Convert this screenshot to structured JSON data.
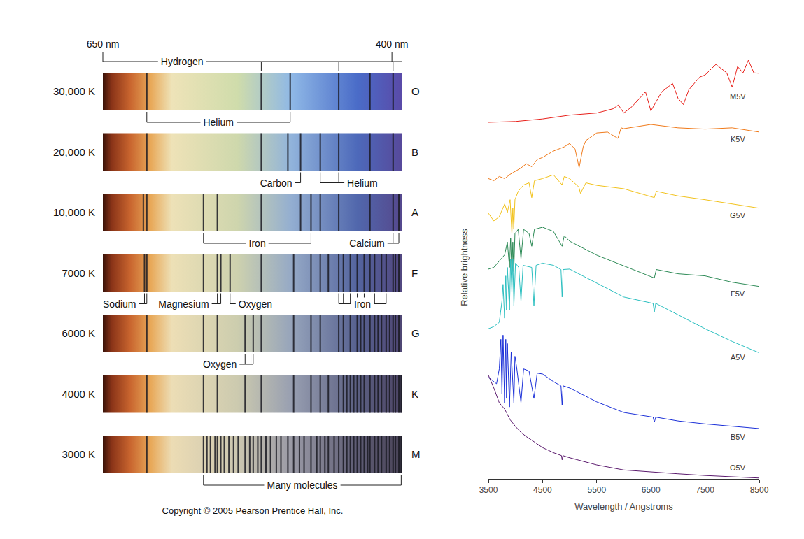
{
  "spectra_diagram": {
    "scale": {
      "xlim": [
        650,
        391
      ],
      "ticks": [
        {
          "value": 650,
          "label": "650 nm"
        },
        {
          "value": 400,
          "label": "400 nm"
        }
      ]
    },
    "header": {
      "text": "Hydrogen",
      "ticks": [
        513,
        446,
        399
      ]
    },
    "rows": [
      {
        "temperature": "30,000 K",
        "class": "O",
        "lines": [
          612,
          513,
          488,
          446,
          419,
          399
        ],
        "labels": [
          {
            "text": "Helium",
            "ticks": [
              612,
              488
            ]
          }
        ]
      },
      {
        "temperature": "20,000 K",
        "class": "B",
        "lines": [
          612,
          513,
          490,
          479,
          462,
          446,
          419,
          399
        ],
        "labels": [
          {
            "text": "Carbon",
            "ticks": [
              479
            ]
          },
          {
            "text": "Helium",
            "ticks": [
              462,
              450,
              446
            ]
          }
        ]
      },
      {
        "temperature": "10,000 K",
        "class": "A",
        "lines": [
          615,
          612,
          563,
          551,
          513,
          479,
          470,
          462,
          446,
          419,
          399,
          394
        ],
        "labels": [
          {
            "text": "Iron",
            "ticks": [
              563,
              470
            ]
          },
          {
            "text": "Calcium",
            "ticks": [
              399,
              394
            ]
          }
        ]
      },
      {
        "temperature": "7000 K",
        "class": "F",
        "lines": [
          614,
          612,
          563,
          551,
          548,
          540,
          513,
          485,
          470,
          462,
          455,
          446,
          442,
          436,
          430,
          424,
          419,
          415,
          409,
          405,
          399,
          397,
          394
        ],
        "labels": [
          {
            "text": "Sodium",
            "ticks": [
              614,
              612
            ]
          },
          {
            "text": "Magnesium",
            "ticks": [
              551,
              548
            ]
          },
          {
            "text": "Oxygen",
            "ticks": [
              540
            ]
          },
          {
            "text": "Iron",
            "ticks": [
              446,
              442,
              436,
              430,
              424,
              415,
              405
            ]
          }
        ]
      },
      {
        "temperature": "6000 K",
        "class": "G",
        "lines": [
          612,
          563,
          551,
          527,
          520,
          513,
          485,
          470,
          462,
          446,
          442,
          436,
          430,
          427,
          424,
          419,
          415,
          412,
          409,
          405,
          402,
          399,
          397,
          394
        ],
        "labels": [
          {
            "text": "Oxygen",
            "ticks": [
              527,
              522,
              520
            ]
          }
        ]
      },
      {
        "temperature": "4000 K",
        "class": "K",
        "lines": [
          612,
          563,
          551,
          527,
          513,
          485,
          470,
          462,
          455,
          446,
          442,
          439,
          436,
          433,
          430,
          427,
          424,
          419,
          415,
          412,
          409,
          405,
          402,
          399,
          397,
          394,
          392
        ]
      },
      {
        "temperature": "3000 K",
        "class": "M",
        "lines": [
          612,
          563,
          560,
          557,
          553,
          551,
          548,
          545,
          541,
          537,
          533,
          527,
          523,
          520,
          516,
          513,
          509,
          505,
          500,
          496,
          490,
          485,
          480,
          476,
          470,
          465,
          462,
          458,
          455,
          450,
          446,
          442,
          439,
          436,
          433,
          430,
          427,
          424,
          421,
          419,
          415,
          412,
          409,
          405,
          402,
          399,
          397,
          394,
          392
        ],
        "labels": [
          {
            "text": "Many molecules",
            "ticks": [
              563,
              392
            ]
          }
        ]
      }
    ],
    "copyright": "Copyright © 2005 Pearson Prentice Hall, Inc."
  },
  "chart_data": {
    "type": "line",
    "x_label": "Wavelength / Angstroms",
    "y_label": "Relative brightness",
    "xlim": [
      3500,
      8500
    ],
    "xticks": [
      3500,
      4500,
      5500,
      6500,
      7500,
      8500
    ],
    "ylim": [
      0,
      100
    ],
    "tick_labels": "x",
    "grid": false,
    "series": [
      {
        "name": "M5V",
        "color": "#e8201a",
        "x": [
          3500,
          4000,
          4500,
          5000,
          5500,
          5800,
          5900,
          6000,
          6150,
          6300,
          6400,
          6500,
          6700,
          6900,
          7000,
          7100,
          7200,
          7400,
          7500,
          7700,
          7900,
          8000,
          8100,
          8200,
          8300,
          8400,
          8500
        ],
        "values": [
          84.3,
          84.5,
          85.1,
          86,
          86.5,
          87.5,
          88.4,
          86.5,
          88,
          90,
          91.5,
          87,
          91.5,
          93.5,
          90,
          88.5,
          92,
          95,
          95.5,
          98,
          96,
          92.6,
          97.5,
          96,
          99,
          96,
          95.9
        ]
      },
      {
        "name": "K5V",
        "color": "#f07a1a",
        "x": [
          3500,
          3600,
          3700,
          3800,
          3900,
          4000,
          4100,
          4200,
          4300,
          4400,
          4500,
          4700,
          4900,
          5000,
          5100,
          5175,
          5250,
          5300,
          5500,
          5700,
          5890,
          5950,
          6000,
          6500,
          7000,
          7500,
          8000,
          8500
        ],
        "values": [
          71,
          70.5,
          71.5,
          71,
          72,
          72.7,
          73.5,
          74.5,
          73.8,
          75.5,
          76,
          77.5,
          78.5,
          79.3,
          78,
          73.6,
          78.5,
          80,
          81.8,
          82,
          80.5,
          83,
          82.8,
          83.8,
          83,
          82.7,
          83,
          82
        ]
      },
      {
        "name": "G5V",
        "color": "#f2c21b",
        "x": [
          3500,
          3600,
          3700,
          3800,
          3850,
          3900,
          3933,
          3950,
          3968,
          3990,
          4050,
          4150,
          4250,
          4300,
          4350,
          4500,
          4700,
          4861,
          4900,
          5000,
          5170,
          5200,
          5300,
          5500,
          6000,
          6563,
          6600,
          7000,
          7500,
          8000,
          8500
        ],
        "values": [
          62.8,
          61,
          62,
          65,
          63,
          66,
          58,
          64,
          59,
          66,
          68,
          69.5,
          70,
          66.5,
          70.5,
          71,
          71.9,
          69.5,
          71.5,
          71,
          69,
          67.5,
          70,
          69.4,
          68.6,
          66.5,
          68,
          66.9,
          66,
          65,
          64
        ]
      },
      {
        "name": "F5V",
        "color": "#2e8b57",
        "x": [
          3500,
          3600,
          3700,
          3800,
          3850,
          3889,
          3910,
          3933,
          3950,
          3968,
          3990,
          4050,
          4101,
          4150,
          4250,
          4300,
          4350,
          4500,
          4700,
          4861,
          4900,
          5000,
          5500,
          6000,
          6563,
          6600,
          7000,
          7500,
          8000,
          8500
        ],
        "values": [
          49.6,
          50,
          51.5,
          53,
          56,
          50,
          57,
          48,
          56,
          49,
          58,
          59,
          52,
          59,
          58,
          55,
          59,
          59.5,
          58.5,
          55,
          57.5,
          56.2,
          52.9,
          50.4,
          47.5,
          49.5,
          48.5,
          48,
          46.5,
          45.5
        ]
      },
      {
        "name": "A5V",
        "color": "#2bbfc0",
        "x": [
          3500,
          3600,
          3700,
          3750,
          3770,
          3798,
          3820,
          3835,
          3850,
          3889,
          3910,
          3933,
          3950,
          3970,
          4000,
          4060,
          4101,
          4140,
          4300,
          4340,
          4380,
          4500,
          4700,
          4840,
          4861,
          4880,
          5000,
          5500,
          6000,
          6540,
          6563,
          6590,
          7000,
          7500,
          8000,
          8500
        ],
        "values": [
          35.5,
          36,
          37,
          42,
          46,
          38,
          48,
          40,
          50,
          40,
          52,
          44,
          52,
          41,
          51,
          50,
          42,
          50.5,
          50,
          41,
          50.5,
          51,
          50.5,
          49.5,
          43,
          49.5,
          49.6,
          46.3,
          43,
          41.5,
          39.5,
          41.5,
          38.8,
          35.5,
          32.5,
          29.8
        ]
      },
      {
        "name": "B5V",
        "color": "#1a2fd8",
        "x": [
          3500,
          3600,
          3650,
          3700,
          3730,
          3750,
          3770,
          3798,
          3820,
          3835,
          3850,
          3889,
          3920,
          3970,
          3990,
          4020,
          4101,
          4150,
          4250,
          4340,
          4400,
          4500,
          4700,
          4840,
          4861,
          4880,
          5000,
          5500,
          6000,
          6540,
          6563,
          6590,
          7000,
          7500,
          8000,
          8500
        ],
        "values": [
          24,
          23,
          22.5,
          26,
          33,
          20,
          34,
          18,
          33,
          19,
          32,
          17,
          30,
          18,
          29,
          26.5,
          18,
          26,
          25.5,
          19,
          25,
          24.8,
          23,
          22,
          17.4,
          22,
          21.5,
          18.2,
          15.7,
          14.6,
          13.4,
          14.6,
          13.7,
          13,
          12.5,
          11.9
        ]
      },
      {
        "name": "O5V",
        "color": "#5b1a6e",
        "x": [
          3500,
          3600,
          3700,
          3800,
          3900,
          4000,
          4100,
          4200,
          4340,
          4500,
          4700,
          4850,
          4861,
          4875,
          5000,
          5500,
          6000,
          6500,
          7000,
          7500,
          8000,
          8500
        ],
        "values": [
          24.5,
          21.5,
          18,
          16.5,
          14,
          12.4,
          11,
          10,
          8.8,
          7.4,
          6.2,
          5.5,
          4.5,
          5.5,
          5,
          3.3,
          2.1,
          1.6,
          1.2,
          0.8,
          0.5,
          0.2
        ]
      }
    ]
  }
}
